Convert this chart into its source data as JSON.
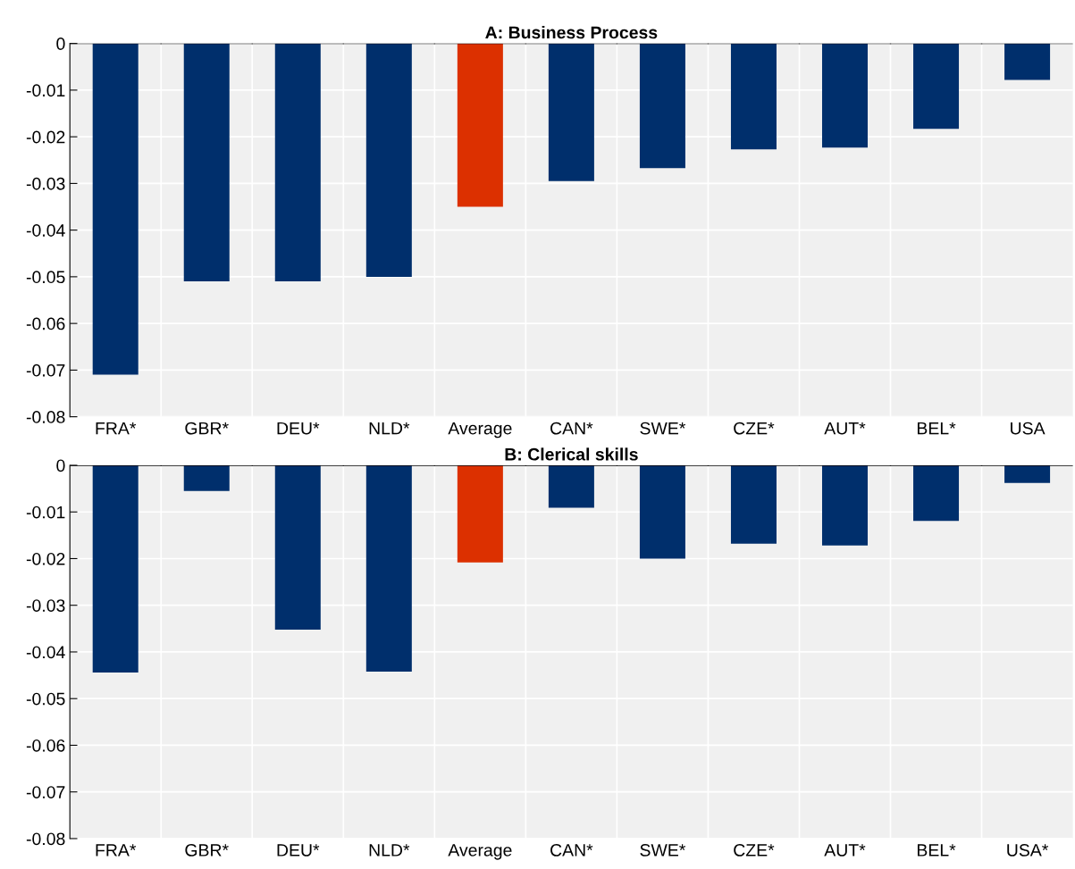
{
  "chart_data": [
    {
      "type": "bar",
      "title": "A: Business Process",
      "categories": [
        "FRA*",
        "GBR*",
        "DEU*",
        "NLD*",
        "Average",
        "CAN*",
        "SWE*",
        "CZE*",
        "AUT*",
        "BEL*",
        "USA"
      ],
      "values": [
        -0.071,
        -0.051,
        -0.051,
        -0.05,
        -0.035,
        -0.0295,
        -0.0267,
        -0.0227,
        -0.0223,
        -0.0183,
        -0.0078
      ],
      "colors": [
        "#002f6c",
        "#002f6c",
        "#002f6c",
        "#002f6c",
        "#dc3000",
        "#002f6c",
        "#002f6c",
        "#002f6c",
        "#002f6c",
        "#002f6c",
        "#002f6c"
      ],
      "ylim": [
        -0.08,
        0
      ],
      "yticks": [
        -0.08,
        -0.07,
        -0.06,
        -0.05,
        -0.04,
        -0.03,
        -0.02,
        -0.01,
        0
      ],
      "grid": true
    },
    {
      "type": "bar",
      "title": "B: Clerical skills",
      "categories": [
        "FRA*",
        "GBR*",
        "DEU*",
        "NLD*",
        "Average",
        "CAN*",
        "SWE*",
        "CZE*",
        "AUT*",
        "BEL*",
        "USA*"
      ],
      "values": [
        -0.0444,
        -0.0055,
        -0.0352,
        -0.0442,
        -0.0208,
        -0.0091,
        -0.02,
        -0.0168,
        -0.0172,
        -0.0119,
        -0.0038
      ],
      "colors": [
        "#002f6c",
        "#002f6c",
        "#002f6c",
        "#002f6c",
        "#dc3000",
        "#002f6c",
        "#002f6c",
        "#002f6c",
        "#002f6c",
        "#002f6c",
        "#002f6c"
      ],
      "ylim": [
        -0.08,
        0
      ],
      "yticks": [
        -0.08,
        -0.07,
        -0.06,
        -0.05,
        -0.04,
        -0.03,
        -0.02,
        -0.01,
        0
      ],
      "grid": true
    }
  ]
}
